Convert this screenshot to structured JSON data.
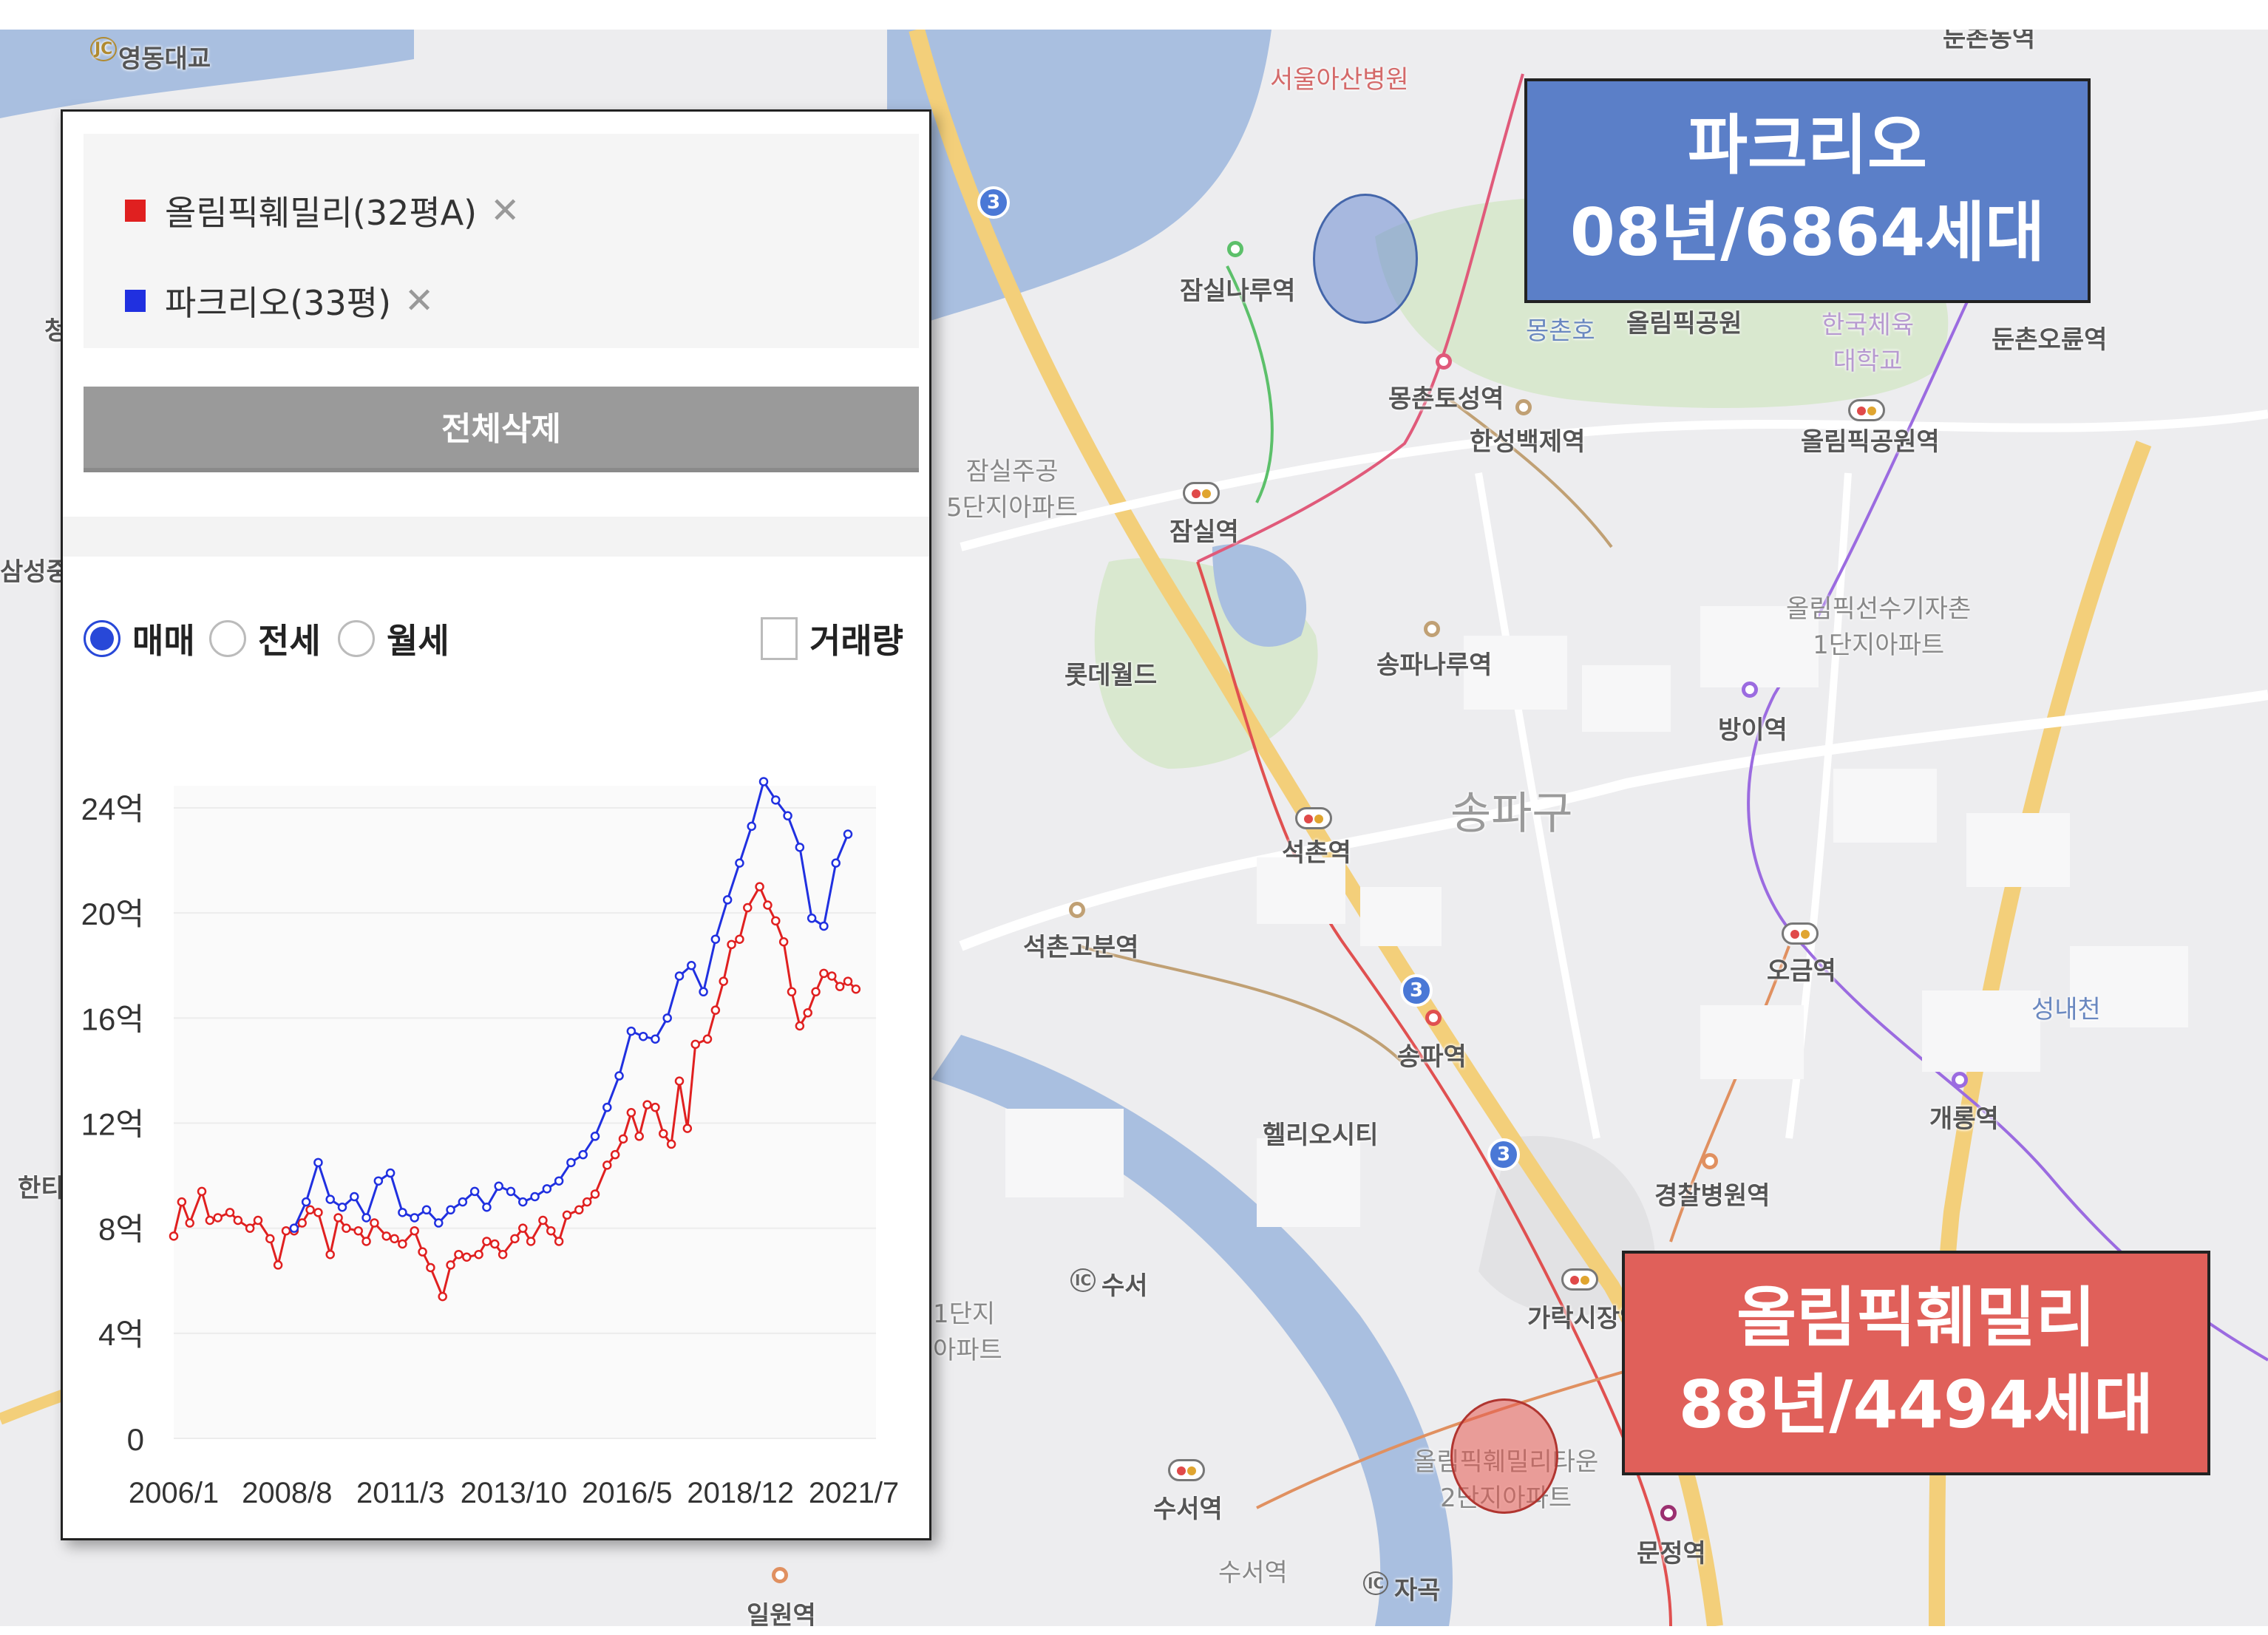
{
  "map": {
    "labels": {
      "yeongdong_bridge": "영동대교",
      "seoul_asan": "서울아산병원",
      "jamsilnaru": "잠실나루역",
      "dunchon_top": "둔촌동역",
      "mongchonho": "몽촌호",
      "olympic_park": "올림픽공원",
      "kor_univ_pe": "한국체육\n대학교",
      "dunchon_oryun": "둔촌오륜역",
      "mongchon_toseong": "몽촌토성역",
      "hanseong_baekje": "한성백제역",
      "olympic_park_station": "올림픽공원역",
      "jamsil_jugong": "잠실주공\n5단지아파트",
      "jamsil": "잠실역",
      "lotte_world": "롯데월드",
      "songpanaru": "송파나루역",
      "olympic_athlete_village": "올림픽선수기자촌\n1단지아파트",
      "bangi": "방이역",
      "songpa_gu": "송파구",
      "seokchon": "석촌역",
      "seokchon_gobun": "석촌고분역",
      "ogeum": "오금역",
      "seongnaecheon": "성내천",
      "songpa": "송파역",
      "helio_city": "헬리오시티",
      "gaerong": "개롱역",
      "police_hospital": "경찰병원역",
      "garak_market": "가락시장역",
      "suseo_ic": "수서",
      "suseo": "수서역",
      "suseo_bottom": "수서역",
      "olympic_family_town": "올림픽훼밀리타운\n2단지아파트",
      "munjeong": "문정역",
      "jagok_ic": "자곡",
      "ilwon": "일원역",
      "samseong": "삼성중",
      "hanti": "한티",
      "cheong": "청",
      "danji_left": "1단지\n아파트"
    },
    "line3_badge": "3",
    "jc_badge": "JC",
    "ic_badge": "IC"
  },
  "callouts": {
    "top": {
      "name": "파크리오",
      "info": "08년/6864세대"
    },
    "bottom": {
      "name": "올림픽훼밀리",
      "info": "88년/4494세대"
    }
  },
  "panel": {
    "legend": [
      {
        "label": "올림픽훼밀리(32평A)",
        "color": "#e02020",
        "remove": "✕"
      },
      {
        "label": "파크리오(33평)",
        "color": "#2030e0",
        "remove": "✕"
      }
    ],
    "delete_all": "전체삭제",
    "radios": [
      {
        "label": "매매",
        "checked": true
      },
      {
        "label": "전세",
        "checked": false
      },
      {
        "label": "월세",
        "checked": false
      }
    ],
    "volume_checkbox": {
      "label": "거래량",
      "checked": false
    }
  },
  "chart_data": {
    "type": "line",
    "ylabel_unit": "억",
    "y_ticks": [
      "0",
      "4억",
      "8억",
      "12억",
      "16억",
      "20억",
      "24억"
    ],
    "ylim": [
      0,
      24
    ],
    "x_ticks": [
      "2006/1",
      "2008/8",
      "2011/3",
      "2013/10",
      "2016/5",
      "2018/12",
      "2021/7"
    ],
    "x_range": [
      2006.0,
      2023.5
    ],
    "series": [
      {
        "name": "올림픽훼밀리(32평A)",
        "color": "#e02020",
        "x": [
          2006.0,
          2006.2,
          2006.4,
          2006.7,
          2006.9,
          2007.1,
          2007.4,
          2007.6,
          2007.9,
          2008.1,
          2008.4,
          2008.6,
          2008.8,
          2009.0,
          2009.2,
          2009.4,
          2009.6,
          2009.9,
          2010.1,
          2010.3,
          2010.6,
          2010.8,
          2011.0,
          2011.3,
          2011.5,
          2011.7,
          2012.0,
          2012.2,
          2012.4,
          2012.7,
          2012.9,
          2013.1,
          2013.3,
          2013.6,
          2013.8,
          2014.0,
          2014.2,
          2014.5,
          2014.7,
          2014.9,
          2015.2,
          2015.4,
          2015.6,
          2015.8,
          2016.1,
          2016.3,
          2016.5,
          2016.8,
          2017.0,
          2017.2,
          2017.4,
          2017.6,
          2017.8,
          2018.0,
          2018.2,
          2018.4,
          2018.6,
          2018.8,
          2019.0,
          2019.3,
          2019.5,
          2019.7,
          2019.9,
          2020.1,
          2020.3,
          2020.6,
          2020.8,
          2021.0,
          2021.2,
          2021.4,
          2021.6,
          2021.8,
          2022.0,
          2022.2,
          2022.4,
          2022.6,
          2022.8,
          2023.0
        ],
        "values": [
          7.7,
          9.0,
          8.2,
          9.4,
          8.3,
          8.4,
          8.6,
          8.3,
          8.0,
          8.3,
          7.6,
          6.6,
          7.9,
          7.9,
          8.2,
          8.7,
          8.6,
          7.0,
          8.4,
          8.0,
          7.9,
          7.5,
          8.2,
          7.7,
          7.6,
          7.4,
          7.9,
          7.1,
          6.5,
          5.4,
          6.6,
          7.0,
          6.9,
          7.0,
          7.5,
          7.4,
          7.0,
          7.6,
          8.0,
          7.5,
          8.3,
          7.9,
          7.5,
          8.5,
          8.7,
          9.0,
          9.3,
          10.4,
          10.8,
          11.4,
          12.4,
          11.5,
          12.7,
          12.6,
          11.6,
          11.2,
          13.6,
          11.8,
          15.0,
          15.2,
          16.3,
          17.4,
          18.8,
          19.0,
          20.2,
          21.0,
          20.3,
          19.7,
          18.9,
          17.0,
          15.7,
          16.2,
          17.0,
          17.7,
          17.6,
          17.2,
          17.4,
          17.1
        ]
      },
      {
        "name": "파크리오(33평)",
        "color": "#2030e0",
        "x": [
          2009.0,
          2009.3,
          2009.6,
          2009.9,
          2010.2,
          2010.5,
          2010.8,
          2011.1,
          2011.4,
          2011.7,
          2012.0,
          2012.3,
          2012.6,
          2012.9,
          2013.2,
          2013.5,
          2013.8,
          2014.1,
          2014.4,
          2014.7,
          2015.0,
          2015.3,
          2015.6,
          2015.9,
          2016.2,
          2016.5,
          2016.8,
          2017.1,
          2017.4,
          2017.7,
          2018.0,
          2018.3,
          2018.6,
          2018.9,
          2019.2,
          2019.5,
          2019.8,
          2020.1,
          2020.4,
          2020.7,
          2021.0,
          2021.3,
          2021.6,
          2021.9,
          2022.2,
          2022.5,
          2022.8
        ],
        "values": [
          8.0,
          9.0,
          10.5,
          9.1,
          8.8,
          9.2,
          8.4,
          9.8,
          10.1,
          8.6,
          8.4,
          8.7,
          8.2,
          8.7,
          9.0,
          9.4,
          8.8,
          9.6,
          9.4,
          9.0,
          9.2,
          9.5,
          9.8,
          10.5,
          10.8,
          11.5,
          12.6,
          13.8,
          15.5,
          15.3,
          15.2,
          16.0,
          17.6,
          18.0,
          17.0,
          19.0,
          20.5,
          21.9,
          23.3,
          25.0,
          24.3,
          23.7,
          22.5,
          19.8,
          19.5,
          21.9,
          23.0
        ]
      }
    ]
  }
}
